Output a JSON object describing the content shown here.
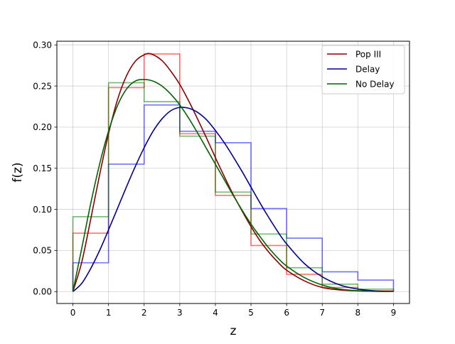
{
  "chart_data": {
    "type": "line",
    "title": "",
    "xlabel": "z",
    "ylabel": "f(z)",
    "xlim": [
      -0.45,
      9.45
    ],
    "ylim": [
      -0.0145,
      0.3045
    ],
    "xticks": [
      0,
      1,
      2,
      3,
      4,
      5,
      6,
      7,
      8,
      9
    ],
    "yticks": [
      0.0,
      0.05,
      0.1,
      0.15,
      0.2,
      0.25,
      0.3
    ],
    "ytick_labels": [
      "0.00",
      "0.05",
      "0.10",
      "0.15",
      "0.20",
      "0.25",
      "0.30"
    ],
    "grid": true,
    "legend_position": "top-right",
    "series": [
      {
        "name": "Pop III",
        "color": "#8b0000",
        "curve_points": [
          [
            0,
            0
          ],
          [
            0.25,
            0.036
          ],
          [
            0.5,
            0.088
          ],
          [
            0.75,
            0.142
          ],
          [
            1,
            0.192
          ],
          [
            1.25,
            0.233
          ],
          [
            1.5,
            0.262
          ],
          [
            1.75,
            0.28
          ],
          [
            2,
            0.288
          ],
          [
            2.2,
            0.289
          ],
          [
            2.5,
            0.281
          ],
          [
            2.75,
            0.268
          ],
          [
            3,
            0.252
          ],
          [
            3.25,
            0.232
          ],
          [
            3.5,
            0.21
          ],
          [
            3.75,
            0.187
          ],
          [
            4,
            0.163
          ],
          [
            4.25,
            0.14
          ],
          [
            4.5,
            0.118
          ],
          [
            4.75,
            0.098
          ],
          [
            5,
            0.079
          ],
          [
            5.25,
            0.062
          ],
          [
            5.5,
            0.048
          ],
          [
            5.75,
            0.036
          ],
          [
            6,
            0.026
          ],
          [
            6.5,
            0.013
          ],
          [
            7,
            0.005
          ],
          [
            7.5,
            0.002
          ],
          [
            8,
            0.0008
          ],
          [
            8.5,
            0.0002
          ],
          [
            9,
            0.0
          ]
        ]
      },
      {
        "name": "Delay",
        "color": "#00008b",
        "curve_points": [
          [
            0,
            0
          ],
          [
            0.25,
            0.01
          ],
          [
            0.5,
            0.028
          ],
          [
            0.75,
            0.05
          ],
          [
            1,
            0.075
          ],
          [
            1.25,
            0.101
          ],
          [
            1.5,
            0.127
          ],
          [
            1.75,
            0.152
          ],
          [
            2,
            0.175
          ],
          [
            2.25,
            0.195
          ],
          [
            2.5,
            0.21
          ],
          [
            2.75,
            0.22
          ],
          [
            3,
            0.224
          ],
          [
            3.25,
            0.223
          ],
          [
            3.5,
            0.218
          ],
          [
            3.75,
            0.209
          ],
          [
            4,
            0.196
          ],
          [
            4.25,
            0.181
          ],
          [
            4.5,
            0.164
          ],
          [
            4.75,
            0.146
          ],
          [
            5,
            0.127
          ],
          [
            5.25,
            0.108
          ],
          [
            5.5,
            0.09
          ],
          [
            5.75,
            0.073
          ],
          [
            6,
            0.058
          ],
          [
            6.5,
            0.034
          ],
          [
            7,
            0.018
          ],
          [
            7.5,
            0.008
          ],
          [
            8,
            0.003
          ],
          [
            8.5,
            0.0008
          ],
          [
            9,
            0.0
          ]
        ]
      },
      {
        "name": "No Delay",
        "color": "#006400",
        "curve_points": [
          [
            0,
            0
          ],
          [
            0.25,
            0.053
          ],
          [
            0.5,
            0.107
          ],
          [
            0.75,
            0.155
          ],
          [
            1,
            0.195
          ],
          [
            1.25,
            0.226
          ],
          [
            1.5,
            0.246
          ],
          [
            1.75,
            0.256
          ],
          [
            2,
            0.258
          ],
          [
            2.25,
            0.256
          ],
          [
            2.5,
            0.25
          ],
          [
            2.75,
            0.24
          ],
          [
            3,
            0.227
          ],
          [
            3.25,
            0.211
          ],
          [
            3.5,
            0.193
          ],
          [
            3.75,
            0.174
          ],
          [
            4,
            0.155
          ],
          [
            4.25,
            0.136
          ],
          [
            4.5,
            0.117
          ],
          [
            4.75,
            0.099
          ],
          [
            5,
            0.082
          ],
          [
            5.25,
            0.067
          ],
          [
            5.5,
            0.053
          ],
          [
            5.75,
            0.041
          ],
          [
            6,
            0.031
          ],
          [
            6.5,
            0.017
          ],
          [
            7,
            0.008
          ],
          [
            7.5,
            0.003
          ],
          [
            8,
            0.001
          ],
          [
            8.5,
            0.0003
          ],
          [
            9,
            0.0
          ]
        ]
      }
    ],
    "histograms": [
      {
        "name": "Pop III",
        "color": "#ff0000",
        "bin_edges": [
          0,
          1,
          2,
          3,
          4,
          5,
          6,
          7,
          8,
          9
        ],
        "values": [
          0.071,
          0.248,
          0.289,
          0.192,
          0.117,
          0.056,
          0.021,
          0.005,
          0.001
        ]
      },
      {
        "name": "Delay",
        "color": "#0000ff",
        "bin_edges": [
          0,
          1,
          2,
          3,
          4,
          5,
          6,
          7,
          8,
          9
        ],
        "values": [
          0.035,
          0.155,
          0.227,
          0.195,
          0.181,
          0.101,
          0.065,
          0.024,
          0.014
        ]
      },
      {
        "name": "No Delay",
        "color": "#008000",
        "bin_edges": [
          0,
          1,
          2,
          3,
          4,
          5,
          6,
          7,
          8,
          9
        ],
        "values": [
          0.091,
          0.254,
          0.231,
          0.189,
          0.121,
          0.07,
          0.029,
          0.009,
          0.003
        ]
      }
    ]
  }
}
